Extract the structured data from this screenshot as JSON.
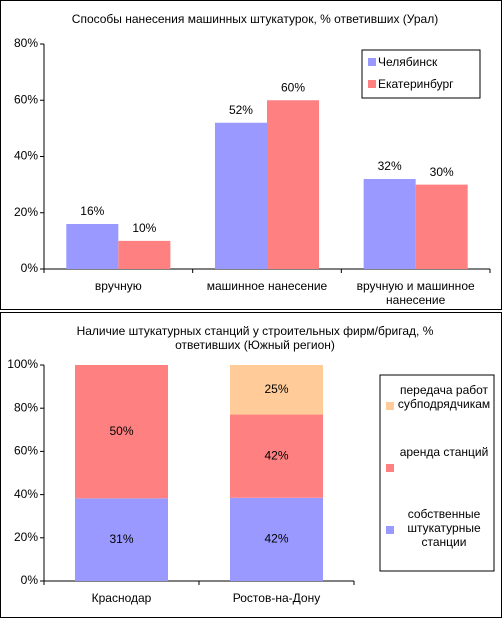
{
  "chart_data": [
    {
      "type": "bar",
      "title": "Способы нанесения машинных штукатурок, % ответивших (Урал)",
      "categories": [
        "вручную",
        "машинное нанесение",
        "вручную и машинное нанесение"
      ],
      "series": [
        {
          "name": "Челябинск",
          "color": "#9999ff",
          "values": [
            16,
            52,
            32
          ],
          "value_labels": [
            "16%",
            "52%",
            "32%"
          ]
        },
        {
          "name": "Екатеринбург",
          "color": "#ff8080",
          "values": [
            10,
            60,
            30
          ],
          "value_labels": [
            "10%",
            "60%",
            "30%"
          ]
        }
      ],
      "ylim": [
        0,
        80
      ],
      "yticks": [
        {
          "value": 0,
          "label": "0%"
        },
        {
          "value": 20,
          "label": "20%"
        },
        {
          "value": 40,
          "label": "40%"
        },
        {
          "value": 60,
          "label": "60%"
        },
        {
          "value": 80,
          "label": "80%"
        }
      ],
      "legend": "top-right"
    },
    {
      "type": "stacked-bar",
      "stacking": "percent",
      "title": "Наличие штукатурных станций у строительных фирм/бригад, % ответивших (Южный регион)",
      "categories": [
        "Краснодар",
        "Ростов-на-Дону"
      ],
      "series": [
        {
          "name": "собственные штукатурные станции",
          "color": "#9999ff",
          "values": [
            31,
            42
          ],
          "value_labels": [
            "31%",
            "42%"
          ]
        },
        {
          "name": "аренда станций",
          "color": "#ff8080",
          "values": [
            50,
            42
          ],
          "value_labels": [
            "50%",
            "42%"
          ]
        },
        {
          "name": "передача работ субподрядчикам",
          "color": "#ffcc99",
          "values": [
            null,
            25
          ],
          "value_labels": [
            null,
            "25%"
          ]
        }
      ],
      "ylim": [
        0,
        100
      ],
      "yticks": [
        {
          "value": 0,
          "label": "0%"
        },
        {
          "value": 20,
          "label": "20%"
        },
        {
          "value": 40,
          "label": "40%"
        },
        {
          "value": 60,
          "label": "60%"
        },
        {
          "value": 80,
          "label": "80%"
        },
        {
          "value": 100,
          "label": "100%"
        }
      ],
      "legend": "right"
    }
  ]
}
